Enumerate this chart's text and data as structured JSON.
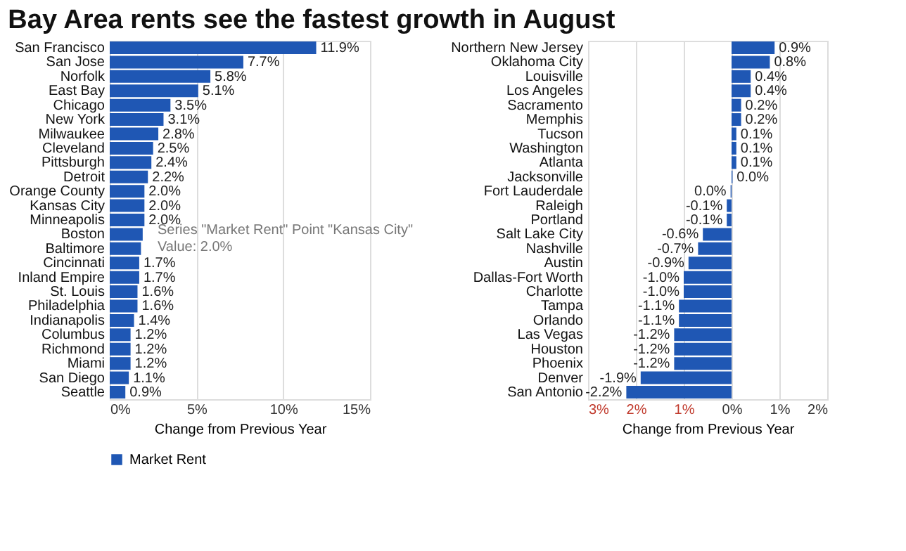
{
  "chart_data": [
    {
      "type": "bar",
      "orientation": "horizontal",
      "title": "Bay Area rents see the fastest growth in August",
      "xlabel": "Change from Previous Year",
      "categories": [
        "San Francisco",
        "San Jose",
        "Norfolk",
        "East Bay",
        "Chicago",
        "New York",
        "Milwaukee",
        "Cleveland",
        "Pittsburgh",
        "Detroit",
        "Orange County",
        "Kansas City",
        "Minneapolis",
        "Boston",
        "Baltimore",
        "Cincinnati",
        "Inland Empire",
        "St. Louis",
        "Philadelphia",
        "Indianapolis",
        "Columbus",
        "Richmond",
        "Miami",
        "San Diego",
        "Seattle"
      ],
      "series": [
        {
          "name": "Market Rent",
          "color": "#1f57b4",
          "values": [
            11.9,
            7.7,
            5.8,
            5.1,
            3.5,
            3.1,
            2.8,
            2.5,
            2.4,
            2.2,
            2.0,
            2.0,
            2.0,
            1.9,
            1.8,
            1.7,
            1.7,
            1.6,
            1.6,
            1.4,
            1.2,
            1.2,
            1.2,
            1.1,
            0.9
          ],
          "value_labels": [
            "11.9%",
            "7.7%",
            "5.8%",
            "5.1%",
            "3.5%",
            "3.1%",
            "2.8%",
            "2.5%",
            "2.4%",
            "2.2%",
            "2.0%",
            "2.0%",
            "2.0%",
            null,
            null,
            "1.7%",
            "1.7%",
            "1.6%",
            "1.6%",
            "1.4%",
            "1.2%",
            "1.2%",
            "1.2%",
            "1.1%",
            "0.9%"
          ]
        }
      ],
      "xlim": [
        0,
        15
      ],
      "xticks": [
        {
          "value": 0,
          "label": "0%"
        },
        {
          "value": 5,
          "label": "5%"
        },
        {
          "value": 10,
          "label": "10%"
        },
        {
          "value": 15,
          "label": "15%"
        }
      ],
      "grid": "x",
      "legend": "bottom",
      "annotations": [
        "Series \"Market Rent\" Point \"Kansas City\"",
        "Value: 2.0%"
      ]
    },
    {
      "type": "bar",
      "orientation": "horizontal",
      "xlabel": "Change from Previous Year",
      "categories": [
        "Northern New Jersey",
        "Oklahoma City",
        "Louisville",
        "Los Angeles",
        "Sacramento",
        "Memphis",
        "Tucson",
        "Washington",
        "Atlanta",
        "Jacksonville",
        "Fort Lauderdale",
        "Raleigh",
        "Portland",
        "Salt Lake City",
        "Nashville",
        "Austin",
        "Dallas-Fort Worth",
        "Charlotte",
        "Tampa",
        "Orlando",
        "Las Vegas",
        "Houston",
        "Phoenix",
        "Denver",
        "San Antonio"
      ],
      "series": [
        {
          "color": "#1f57b4",
          "values": [
            0.9,
            0.8,
            0.4,
            0.4,
            0.2,
            0.2,
            0.1,
            0.1,
            0.1,
            0.02,
            -0.02,
            -0.1,
            -0.1,
            -0.6,
            -0.7,
            -0.9,
            -1.0,
            -1.0,
            -1.1,
            -1.1,
            -1.2,
            -1.2,
            -1.2,
            -1.9,
            -2.2
          ],
          "value_labels": [
            "0.9%",
            "0.8%",
            "0.4%",
            "0.4%",
            "0.2%",
            "0.2%",
            "0.1%",
            "0.1%",
            "0.1%",
            "0.0%",
            "0.0%",
            "-0.1%",
            "-0.1%",
            "-0.6%",
            "-0.7%",
            "-0.9%",
            "-1.0%",
            "-1.0%",
            "-1.1%",
            "-1.1%",
            "-1.2%",
            "-1.2%",
            "-1.2%",
            "-1.9%",
            "-2.2%"
          ]
        }
      ],
      "xlim": [
        -3,
        2
      ],
      "xticks": [
        {
          "value": -3,
          "label": "3%"
        },
        {
          "value": -2,
          "label": "2%"
        },
        {
          "value": -1,
          "label": "1%"
        },
        {
          "value": 0,
          "label": "0%"
        },
        {
          "value": 1,
          "label": "1%"
        },
        {
          "value": 2,
          "label": "2%"
        }
      ],
      "grid": "x"
    }
  ]
}
